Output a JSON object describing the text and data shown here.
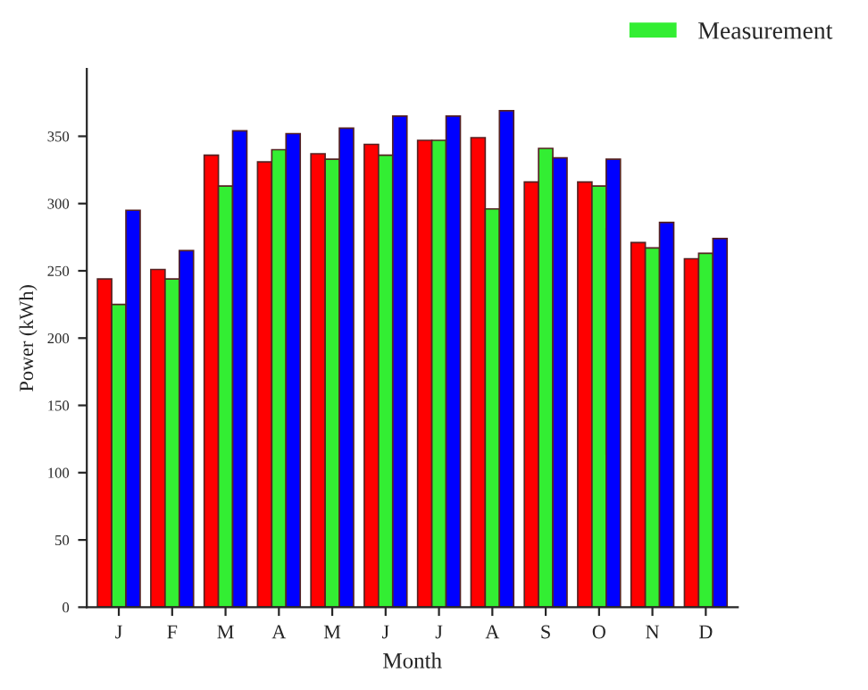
{
  "chart_data": {
    "type": "bar",
    "xlabel": "Month",
    "ylabel": "Power (kWh)",
    "categories": [
      "J",
      "F",
      "M",
      "A",
      "M",
      "J",
      "J",
      "A",
      "S",
      "O",
      "N",
      "D"
    ],
    "series": [
      {
        "color": "#ff0000",
        "values": [
          244,
          251,
          336,
          331,
          337,
          344,
          347,
          349,
          316,
          316,
          271,
          259
        ]
      },
      {
        "name": "Measurement",
        "color": "#33ee33",
        "values": [
          225,
          244,
          313,
          340,
          333,
          336,
          347,
          296,
          341,
          313,
          267,
          263
        ]
      },
      {
        "color": "#0000ff",
        "values": [
          295,
          265,
          354,
          352,
          356,
          365,
          365,
          369,
          334,
          333,
          286,
          274
        ]
      }
    ],
    "ylim": [
      0,
      400
    ],
    "yticks": [
      0,
      50,
      100,
      150,
      200,
      250,
      300,
      350
    ],
    "grid": false,
    "legend": "top right"
  }
}
